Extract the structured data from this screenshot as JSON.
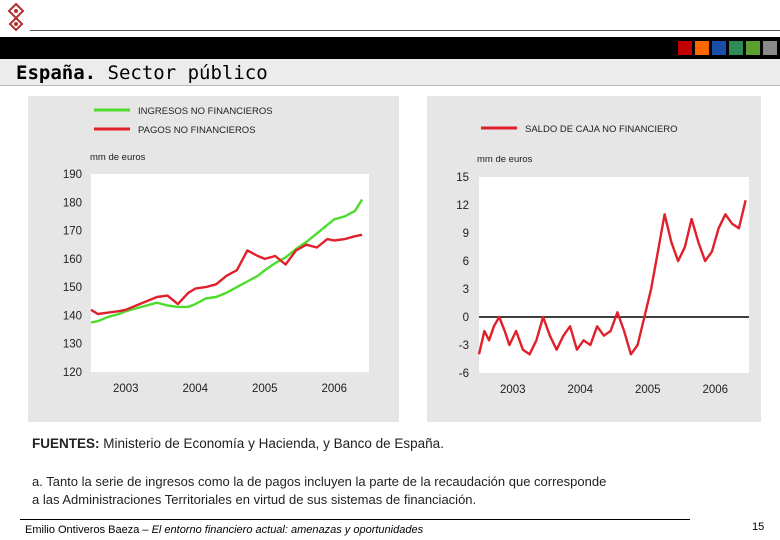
{
  "header": {
    "title_bold": "España.",
    "title_rest": " Sector público",
    "brand_colors": [
      "#8b0000",
      "#c00000",
      "#ff6600",
      "#1a4ea8",
      "#2e8b57",
      "#5aa02c",
      "#8a8a8a"
    ]
  },
  "chart_data": [
    {
      "type": "line",
      "title": "",
      "ylabel": "mm de euros",
      "ylim": [
        120,
        190
      ],
      "yticks": [
        "190",
        "180",
        "170",
        "160",
        "150",
        "140",
        "130",
        "120"
      ],
      "xticks": [
        "2003",
        "2004",
        "2005",
        "2006"
      ],
      "xlim": [
        2002.5,
        2006.5
      ],
      "legend": "top-left",
      "series": [
        {
          "name": "INGRESOS NO FINANCIEROS",
          "color": "#4ddc2c",
          "x": [
            2002.5,
            2002.6,
            2002.75,
            2002.9,
            2003.0,
            2003.15,
            2003.3,
            2003.45,
            2003.6,
            2003.75,
            2003.9,
            2004.0,
            2004.15,
            2004.3,
            2004.45,
            2004.6,
            2004.75,
            2004.9,
            2005.0,
            2005.15,
            2005.3,
            2005.45,
            2005.6,
            2005.75,
            2005.9,
            2006.0,
            2006.15,
            2006.3,
            2006.4
          ],
          "values": [
            137.5,
            138,
            139.5,
            140.5,
            141.5,
            142.5,
            143.5,
            144.5,
            143.5,
            143,
            143,
            144,
            146,
            146.5,
            148,
            150,
            152,
            154,
            156,
            158.5,
            160.5,
            163.5,
            166,
            169,
            172,
            174,
            175,
            177,
            181
          ]
        },
        {
          "name": "PAGOS NO FINANCIEROS",
          "color": "#e0202a",
          "x": [
            2002.5,
            2002.6,
            2002.75,
            2002.9,
            2003.0,
            2003.15,
            2003.3,
            2003.45,
            2003.6,
            2003.75,
            2003.9,
            2004.0,
            2004.15,
            2004.3,
            2004.45,
            2004.6,
            2004.75,
            2004.9,
            2005.0,
            2005.15,
            2005.3,
            2005.45,
            2005.6,
            2005.75,
            2005.9,
            2006.0,
            2006.15,
            2006.3,
            2006.4
          ],
          "values": [
            142,
            140.5,
            141,
            141.5,
            142,
            143.5,
            145,
            146.5,
            147,
            144,
            148,
            149.5,
            150,
            151,
            154,
            156,
            163,
            161,
            160,
            161,
            158,
            163,
            165,
            164,
            167,
            166.5,
            167,
            168,
            168.5
          ]
        }
      ]
    },
    {
      "type": "line",
      "title": "",
      "ylabel": "mm de euros",
      "ylim": [
        -6,
        15
      ],
      "yticks": [
        "15",
        "12",
        "9",
        "6",
        "3",
        "0",
        "-3",
        "-6"
      ],
      "xticks": [
        "2003",
        "2004",
        "2005",
        "2006"
      ],
      "xlim": [
        2002.5,
        2006.5
      ],
      "zero_line": true,
      "legend": "top-right",
      "series": [
        {
          "name": "SALDO DE CAJA NO FINANCIERO",
          "color": "#e0202a",
          "x": [
            2002.5,
            2002.58,
            2002.65,
            2002.72,
            2002.8,
            2002.88,
            2002.95,
            2003.05,
            2003.15,
            2003.25,
            2003.35,
            2003.45,
            2003.55,
            2003.65,
            2003.75,
            2003.85,
            2003.95,
            2004.05,
            2004.15,
            2004.25,
            2004.35,
            2004.45,
            2004.55,
            2004.65,
            2004.75,
            2004.85,
            2004.95,
            2005.05,
            2005.15,
            2005.25,
            2005.35,
            2005.45,
            2005.55,
            2005.65,
            2005.75,
            2005.85,
            2005.95,
            2006.05,
            2006.15,
            2006.25,
            2006.35,
            2006.45
          ],
          "values": [
            -4,
            -1.5,
            -2.5,
            -1,
            0,
            -1.5,
            -3,
            -1.5,
            -3.5,
            -4,
            -2.5,
            0,
            -2,
            -3.5,
            -2,
            -1,
            -3.5,
            -2.5,
            -3,
            -1,
            -2,
            -1.5,
            0.5,
            -1.5,
            -4,
            -3,
            0,
            3,
            7,
            11,
            8,
            6,
            7.5,
            10.5,
            8,
            6,
            7,
            9.5,
            11,
            10,
            9.5,
            12.5
          ]
        }
      ]
    }
  ],
  "notes": {
    "fuentes_bold": "FUENTES:",
    "fuentes_rest": " Ministerio de Economía y Hacienda, y Banco de España.",
    "line_a1": "a. Tanto la serie de ingresos como la de pagos incluyen la parte de la recaudación que corresponde",
    "line_a2": "a las Administraciones Territoriales en virtud de sus sistemas de financiación."
  },
  "footer": {
    "author": "Emilio Ontiveros Baeza – ",
    "work": "El entorno financiero actual: amenazas y oportunidades",
    "page_number": "15"
  }
}
